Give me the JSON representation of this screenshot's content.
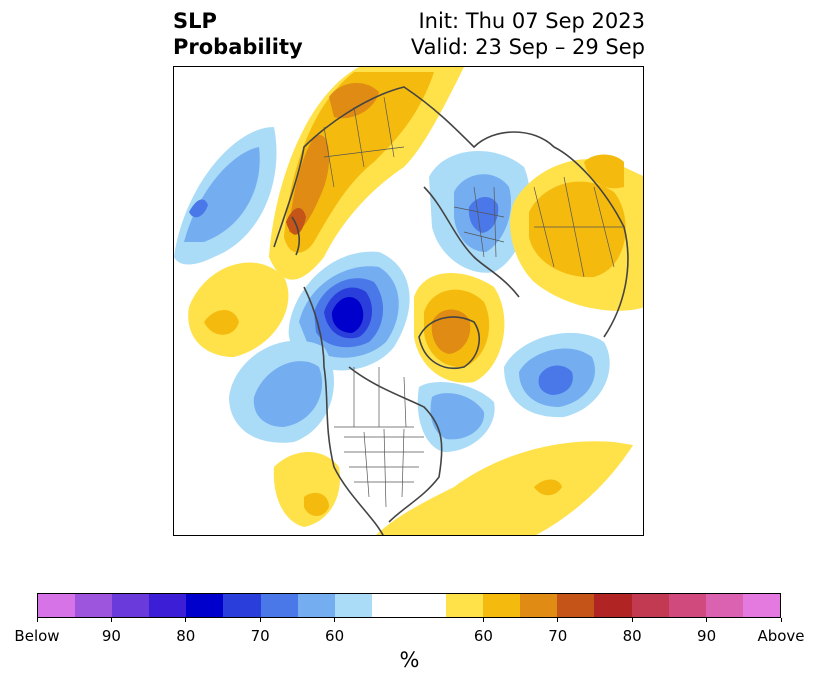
{
  "title": {
    "left_line1": "SLP",
    "left_line2": "Probability",
    "right_line1": "Init: Thu 07 Sep 2023",
    "right_line2": "Valid: 23 Sep – 29 Sep"
  },
  "colorbar": {
    "unit": "%",
    "colors": [
      "#d673e6",
      "#9e55dd",
      "#6b3adb",
      "#3b1ed6",
      "#0000cc",
      "#2a3edb",
      "#4a78e8",
      "#74aef0",
      "#aadcf8",
      "#ffffff",
      "#ffe14a",
      "#f4bb0e",
      "#df8b14",
      "#c45418",
      "#b02424",
      "#c23a52",
      "#d04a7e",
      "#db62b0",
      "#e47ae0"
    ],
    "tick_labels": [
      "Below",
      "90",
      "80",
      "70",
      "60",
      "60",
      "70",
      "80",
      "90",
      "Above"
    ]
  },
  "map": {
    "projection": "north-polar-stereographic",
    "features": [
      "coastlines",
      "country-borders",
      "us-state-borders"
    ]
  }
}
